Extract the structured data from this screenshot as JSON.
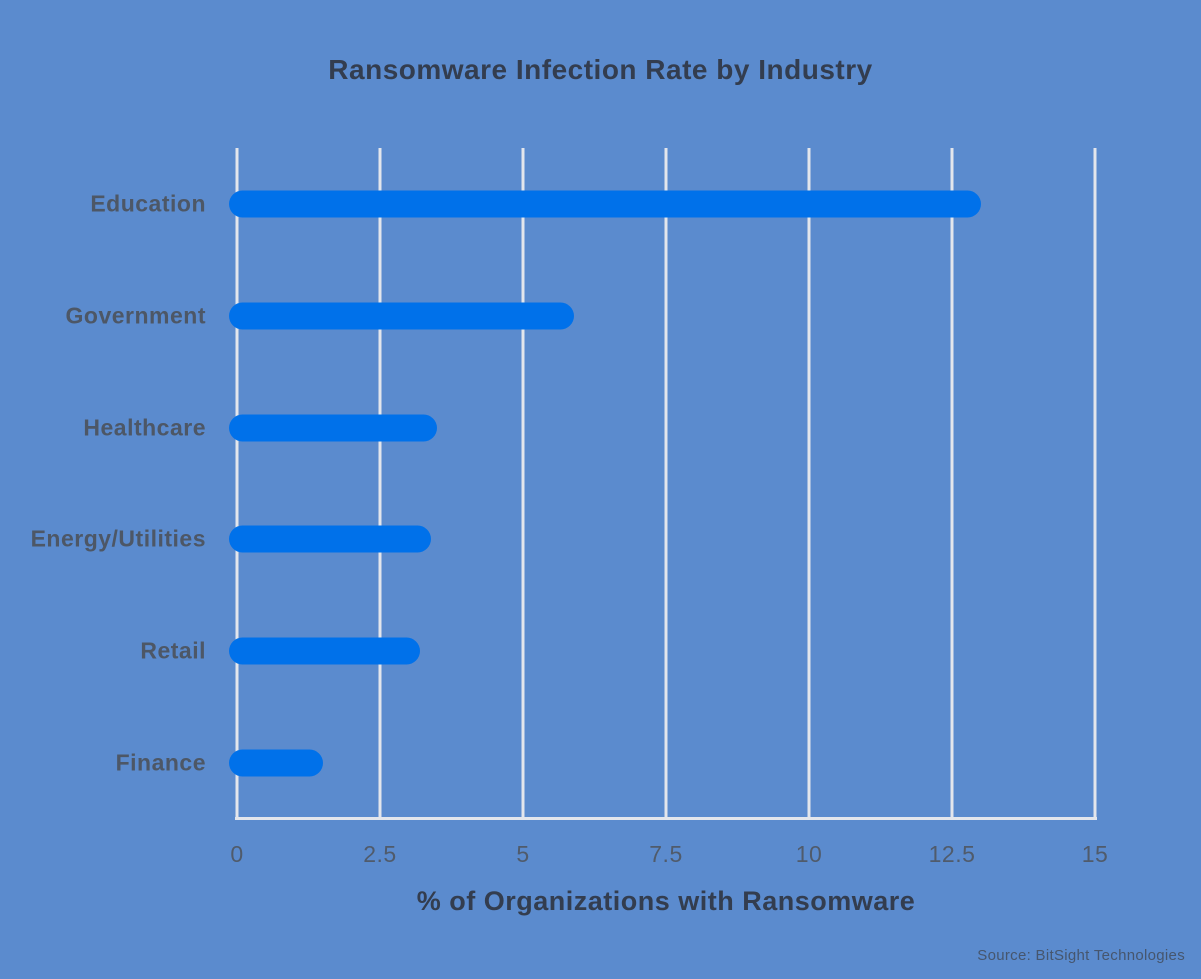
{
  "chart_data": {
    "type": "bar",
    "orientation": "horizontal",
    "title": "Ransomware Infection Rate by Industry",
    "categories": [
      "Education",
      "Government",
      "Healthcare",
      "Energy/Utilities",
      "Retail",
      "Finance"
    ],
    "values": [
      13.0,
      5.9,
      3.5,
      3.4,
      3.2,
      1.5
    ],
    "xlabel": "% of Organizations with Ransomware",
    "ylabel": "",
    "xlim": [
      0,
      15
    ],
    "x_ticks": [
      0,
      2.5,
      5,
      7.5,
      10,
      12.5,
      15
    ],
    "x_tick_labels": [
      "0",
      "2.5",
      "5",
      "7.5",
      "10",
      "12.5",
      "15"
    ],
    "grid": "vertical-white-gridlines",
    "legend": "none",
    "source_note": "Source: BitSight Technologies"
  },
  "colors": {
    "background": "#5b8bce",
    "bar": "#0071ea",
    "gridline": "#e3e6ec",
    "title_text": "#333d4f",
    "axis_text": "#505b6b",
    "category_text": "#4d5766",
    "source_text": "#46566e"
  }
}
